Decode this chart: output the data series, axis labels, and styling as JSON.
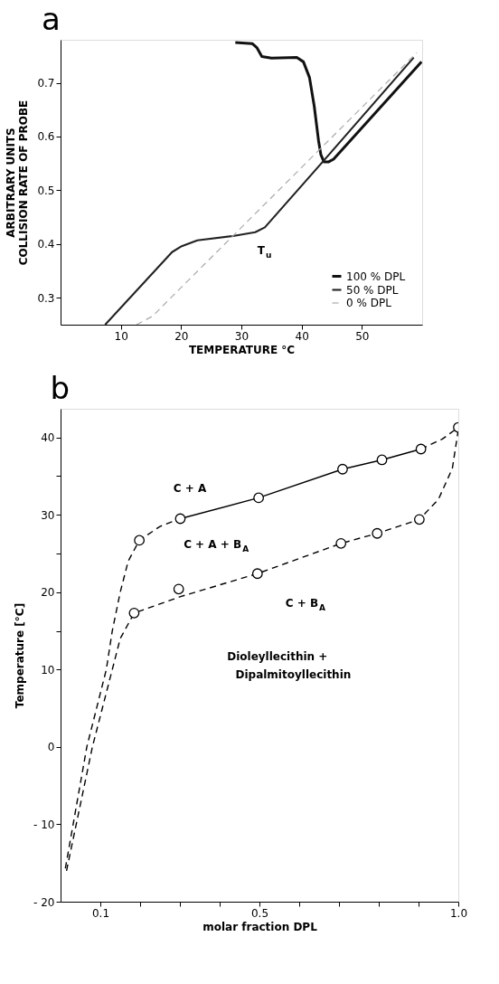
{
  "chart_data": [
    {
      "type": "line",
      "title": "a",
      "xlabel": "TEMPERATURE °C",
      "ylabel": "ARBITRARY UNITS\nCOLLISION RATE OF PROBE",
      "xlim": [
        0,
        60
      ],
      "ylim": [
        0.25,
        0.78
      ],
      "xticks": [
        10,
        20,
        30,
        40,
        50
      ],
      "yticks": [
        0.3,
        0.4,
        0.5,
        0.6,
        0.7
      ],
      "grid": false,
      "legend": "bottom right",
      "series": [
        {
          "name": "100 % DPL",
          "color": "#111111",
          "line_style": "solid",
          "x": [
            29.0,
            31.8,
            32.6,
            33.4,
            35.0,
            39.2,
            40.3,
            41.3,
            42.1,
            42.8,
            43.2,
            43.7,
            44.5,
            45.3,
            59.9
          ],
          "values": [
            0.775,
            0.773,
            0.765,
            0.749,
            0.746,
            0.747,
            0.739,
            0.71,
            0.656,
            0.593,
            0.566,
            0.553,
            0.553,
            0.558,
            0.739
          ]
        },
        {
          "name": "50 % DPL",
          "color": "#222222",
          "line_style": "solid",
          "x": [
            7.4,
            18.5,
            20.1,
            22.7,
            28.6,
            32.3,
            33.9,
            43.5,
            58.6
          ],
          "values": [
            0.25,
            0.385,
            0.396,
            0.407,
            0.415,
            0.422,
            0.431,
            0.553,
            0.747
          ]
        },
        {
          "name": "0 % DPL",
          "color": "#aaaaaa",
          "line_style": "dashed",
          "x": [
            12.6,
            15.3,
            17.4,
            59.1
          ],
          "values": [
            0.25,
            0.266,
            0.29,
            0.756
          ]
        }
      ],
      "annotations": [
        "T$_{u}$"
      ]
    },
    {
      "type": "line",
      "title": "b",
      "xlabel": "molar fraction DPL",
      "ylabel": "Temperature [°C]",
      "xlim": [
        0,
        1
      ],
      "ylim": [
        -20,
        43.7
      ],
      "xticks": [
        {
          "value": 0.1,
          "label": "0.1"
        },
        {
          "value": 0.2,
          "label": null
        },
        {
          "value": 0.3,
          "label": null
        },
        {
          "value": 0.4,
          "label": null
        },
        {
          "value": 0.5,
          "label": "0.5"
        },
        {
          "value": 0.6,
          "label": null
        },
        {
          "value": 0.7,
          "label": null
        },
        {
          "value": 0.8,
          "label": null
        },
        {
          "value": 0.9,
          "label": null
        },
        {
          "value": 1.0,
          "label": "1.0"
        }
      ],
      "yticks": [
        {
          "value": -20,
          "label": "- 20"
        },
        {
          "value": -10,
          "label": "- 10"
        },
        0,
        10,
        {
          "value": 15,
          "label": null
        },
        20,
        {
          "value": 25,
          "label": null
        },
        30,
        {
          "value": 35,
          "label": null
        },
        40
      ],
      "grid": false,
      "legend": false,
      "series": [
        {
          "type": "line",
          "color": "#000000",
          "line_style": "dashed",
          "x": [
            0.012,
            0.066,
            0.115,
            0.13,
            0.15,
            0.17,
            0.198,
            0.25,
            0.301
          ],
          "values": [
            -15.7,
            0,
            10,
            15,
            20,
            24,
            26.7,
            28.5,
            29.5
          ]
        },
        {
          "type": "line",
          "color": "#000000",
          "line_style": "solid",
          "x": [
            0.301,
            0.498,
            0.709,
            0.808,
            0.906
          ],
          "values": [
            29.5,
            32.2,
            35.9,
            37.1,
            38.5
          ]
        },
        {
          "type": "line",
          "color": "#000000",
          "line_style": "dashed",
          "x": [
            0.906,
            0.96,
            1.0
          ],
          "values": [
            38.5,
            39.8,
            41.3
          ]
        },
        {
          "type": "line",
          "color": "#000000",
          "line_style": "dashed",
          "x": [
            0.015,
            0.08,
            0.13,
            0.15,
            0.185,
            0.3,
            0.495,
            0.705,
            0.796,
            0.902,
            0.95,
            0.985,
            1.0
          ],
          "values": [
            -16,
            0,
            10,
            14,
            17.3,
            19.4,
            22.4,
            26.3,
            27.6,
            29.4,
            32,
            36,
            41
          ]
        },
        {
          "type": "scatter",
          "color": "#000000",
          "marker": "circle",
          "x": [
            0.198,
            0.301,
            0.498,
            0.709,
            0.808,
            0.906,
            1.0
          ],
          "values": [
            26.7,
            29.5,
            32.2,
            35.9,
            37.1,
            38.5,
            41.3
          ]
        },
        {
          "type": "scatter",
          "color": "#000000",
          "marker": "circle",
          "x": [
            0.185,
            0.297,
            0.495,
            0.705,
            0.796,
            0.902
          ],
          "values": [
            17.3,
            20.4,
            22.4,
            26.3,
            27.6,
            29.4
          ]
        }
      ],
      "annotations": [
        "C + A",
        "C + A + B$_{A}$",
        "C + B$_{A}$",
        "Dioleyllecithin  +",
        "Dipalmitoyllecithin"
      ]
    }
  ]
}
